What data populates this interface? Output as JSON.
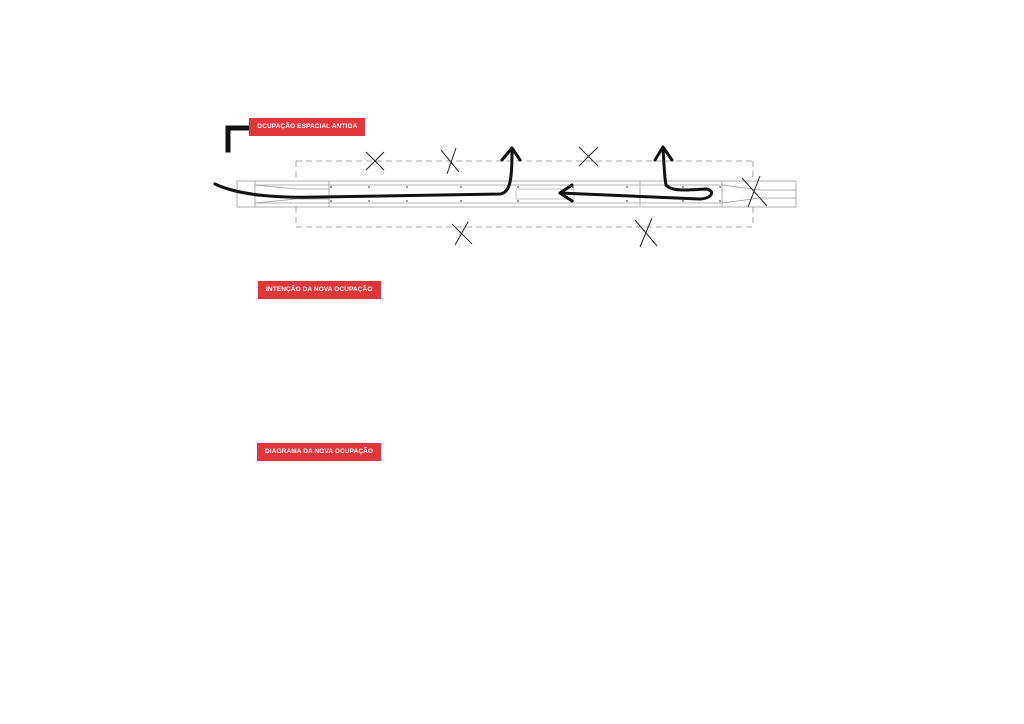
{
  "colors": {
    "accent": "#e2363d",
    "ink": "#111111",
    "plan_line": "#9a9a9a",
    "dashed": "#8c8c8c",
    "background": "#ffffff"
  },
  "sections": [
    {
      "label": "OCUPAÇÃO ESPACIAL ANTIGA"
    },
    {
      "label": "INTENÇÃO DA NOVA OCUPAÇÃO"
    },
    {
      "label": "DIAGRAMA DA NOVA OCUPAÇÃO"
    }
  ],
  "icons": [
    "corner-bracket-icon",
    "cross-mark-icon",
    "arrow-icon",
    "north-arrow-icon"
  ]
}
